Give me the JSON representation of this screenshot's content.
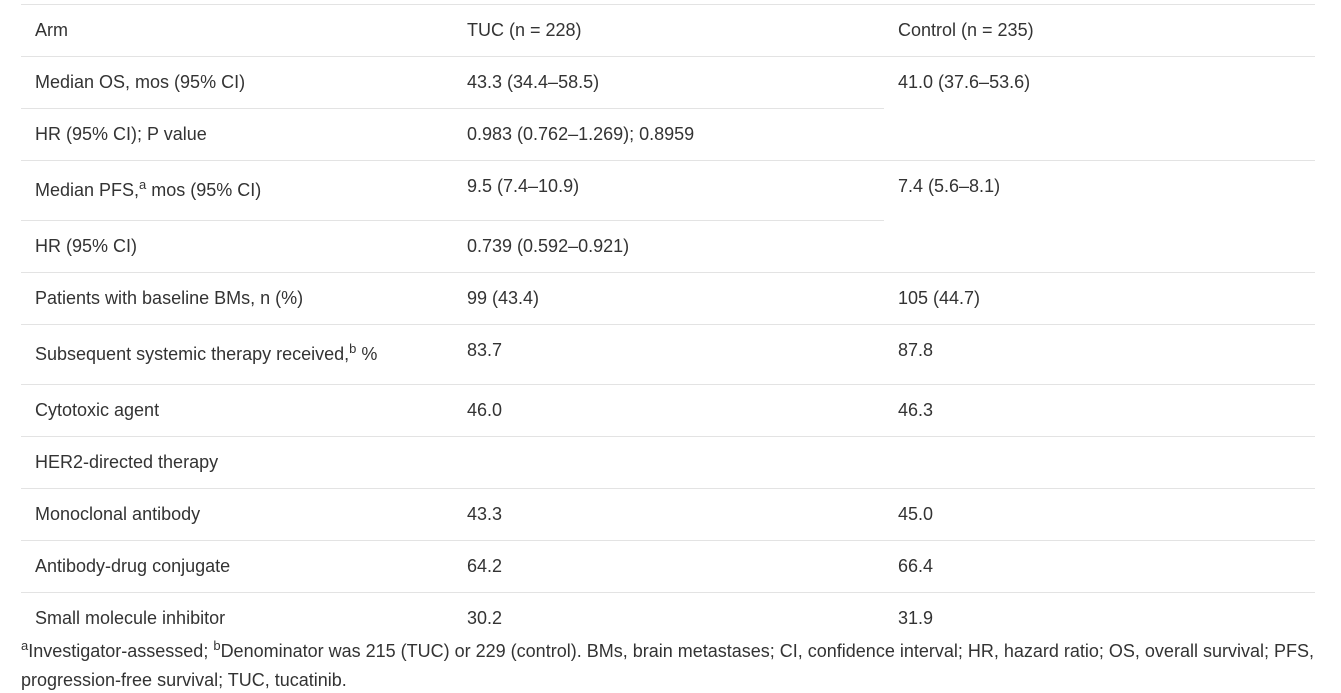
{
  "table": {
    "header": {
      "arm": "Arm",
      "tuc": "TUC (n = 228)",
      "control": "Control (n = 235)"
    },
    "rows": [
      {
        "label": "Median OS, mos (95% CI)",
        "label_sup": "",
        "label_suffix": "",
        "tuc": "43.3 (34.4–58.5)",
        "control": "41.0 (37.6–53.6)"
      },
      {
        "label": "HR (95% CI); P value",
        "label_sup": "",
        "label_suffix": "",
        "tuc": "0.983 (0.762–1.269); 0.8959",
        "control": ""
      },
      {
        "label": "Median PFS,",
        "label_sup": "a",
        "label_suffix": " mos (95% CI)",
        "tuc": "9.5 (7.4–10.9)",
        "control": "7.4 (5.6–8.1)"
      },
      {
        "label": "HR (95% CI)",
        "label_sup": "",
        "label_suffix": "",
        "tuc": "0.739 (0.592–0.921)",
        "control": ""
      },
      {
        "label": "Patients with baseline BMs, n (%)",
        "label_sup": "",
        "label_suffix": "",
        "tuc": "99 (43.4)",
        "control": "105 (44.7)"
      },
      {
        "label": "Subsequent systemic therapy received,",
        "label_sup": "b",
        "label_suffix": " %",
        "tuc": "83.7",
        "control": "87.8"
      },
      {
        "label": "Cytotoxic agent",
        "label_sup": "",
        "label_suffix": "",
        "tuc": "46.0",
        "control": "46.3"
      },
      {
        "label": "HER2-directed therapy",
        "label_sup": "",
        "label_suffix": "",
        "tuc": "",
        "control": ""
      },
      {
        "label": "Monoclonal antibody",
        "label_sup": "",
        "label_suffix": "",
        "tuc": "43.3",
        "control": "45.0"
      },
      {
        "label": "Antibody-drug conjugate",
        "label_sup": "",
        "label_suffix": "",
        "tuc": "64.2",
        "control": "66.4"
      },
      {
        "label": "Small molecule inhibitor",
        "label_sup": "",
        "label_suffix": "",
        "tuc": "30.2",
        "control": "31.9"
      }
    ]
  },
  "footnote": {
    "sup_a": "a",
    "text_a": "Investigator-assessed; ",
    "sup_b": "b",
    "text_b": "Denominator was 215 (TUC) or 229 (control). BMs, brain metastases; CI, confidence interval; HR, hazard ratio; OS, overall survival; PFS, progression-free survival; TUC, tucatinib."
  }
}
